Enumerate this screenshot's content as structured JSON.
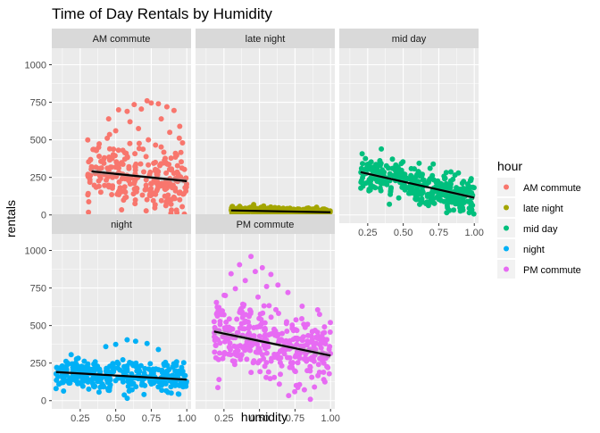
{
  "chart_data": {
    "type": "scatter",
    "title": "Time of Day Rentals by Humidity",
    "xlabel": "humidity",
    "ylabel": "rentals",
    "xlim": [
      0.05,
      1.03
    ],
    "ylim": [
      -55,
      1110
    ],
    "x_ticks": [
      0.25,
      0.5,
      0.75,
      1.0
    ],
    "x_tick_labels": [
      "0.25",
      "0.50",
      "0.75",
      "1.00"
    ],
    "y_ticks": [
      0,
      250,
      500,
      750,
      1000
    ],
    "y_tick_labels": [
      "0",
      "250",
      "500",
      "750",
      "1000"
    ],
    "grid": true,
    "legend_title": "hour",
    "legend_position": "right",
    "trend_line_color": "#000000",
    "series": [
      {
        "name": "AM commute",
        "color": "#F8766D",
        "facet": "AM commute",
        "trend": [
          [
            0.33,
            290
          ],
          [
            1.0,
            225
          ]
        ],
        "n": 260,
        "x_range": [
          0.3,
          1.0
        ],
        "y_center": 275,
        "y_spread": 150,
        "y_max": 770,
        "highlights": [
          [
            0.72,
            760
          ],
          [
            0.75,
            745
          ],
          [
            0.63,
            735
          ],
          [
            0.8,
            740
          ],
          [
            0.86,
            720
          ],
          [
            0.52,
            700
          ],
          [
            0.68,
            705
          ],
          [
            0.91,
            695
          ],
          [
            0.58,
            690
          ],
          [
            0.45,
            640
          ],
          [
            0.6,
            620
          ],
          [
            0.82,
            640
          ],
          [
            0.95,
            590
          ],
          [
            0.5,
            560
          ],
          [
            0.66,
            575
          ],
          [
            0.88,
            550
          ],
          [
            0.44,
            510
          ],
          [
            0.73,
            500
          ],
          [
            0.97,
            480
          ],
          [
            0.38,
            450
          ],
          [
            0.55,
            430
          ],
          [
            0.78,
            465
          ],
          [
            0.42,
            380
          ],
          [
            0.92,
            410
          ]
        ]
      },
      {
        "name": "late night",
        "color": "#A3A500",
        "facet": "late night",
        "trend": [
          [
            0.3,
            30
          ],
          [
            1.0,
            18
          ]
        ],
        "n": 320,
        "x_range": [
          0.3,
          1.0
        ],
        "y_center": 25,
        "y_spread": 20,
        "y_max": 100,
        "highlights": []
      },
      {
        "name": "mid day",
        "color": "#00BF7D",
        "facet": "mid day",
        "trend": [
          [
            0.2,
            285
          ],
          [
            1.0,
            115
          ]
        ],
        "n": 380,
        "x_range": [
          0.2,
          1.0
        ],
        "y_center": 230,
        "y_spread": 90,
        "y_max": 530,
        "highlights": []
      },
      {
        "name": "night",
        "color": "#00B0F6",
        "facet": "night",
        "trend": [
          [
            0.08,
            190
          ],
          [
            1.0,
            140
          ]
        ],
        "n": 330,
        "x_range": [
          0.08,
          1.0
        ],
        "y_center": 165,
        "y_spread": 80,
        "y_max": 410,
        "highlights": [
          [
            0.08,
            80
          ],
          [
            0.1,
            110
          ],
          [
            0.58,
            405
          ],
          [
            0.64,
            395
          ],
          [
            0.5,
            375
          ],
          [
            0.72,
            380
          ],
          [
            0.43,
            360
          ],
          [
            0.8,
            340
          ]
        ]
      },
      {
        "name": "PM commute",
        "color": "#E76BF3",
        "facet": "PM commute",
        "trend": [
          [
            0.18,
            460
          ],
          [
            1.0,
            300
          ]
        ],
        "n": 360,
        "x_range": [
          0.18,
          1.0
        ],
        "y_center": 420,
        "y_spread": 170,
        "y_max": 970,
        "highlights": [
          [
            0.44,
            960
          ],
          [
            0.36,
            905
          ],
          [
            0.52,
            885
          ],
          [
            0.47,
            860
          ],
          [
            0.3,
            845
          ],
          [
            0.58,
            840
          ],
          [
            0.4,
            800
          ],
          [
            0.63,
            770
          ],
          [
            0.33,
            745
          ],
          [
            0.55,
            760
          ],
          [
            0.7,
            720
          ],
          [
            0.26,
            700
          ],
          [
            0.49,
            690
          ]
        ]
      }
    ]
  }
}
